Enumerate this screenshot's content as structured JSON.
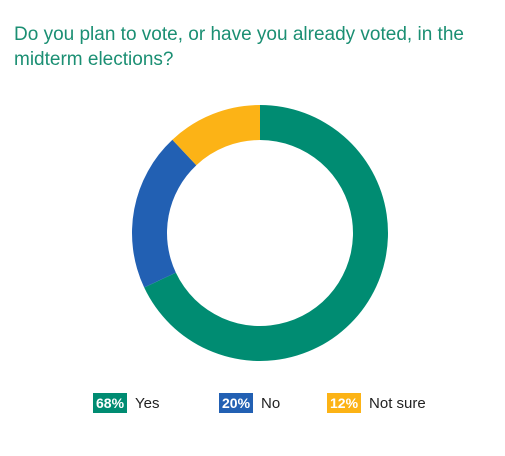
{
  "title": "Do you plan to vote, or have you already voted, in the midterm elections?",
  "colors": {
    "yes": "#008c72",
    "no": "#2260b3",
    "not_sure": "#fcb316",
    "title": "#1b8f73"
  },
  "chart_data": {
    "type": "pie",
    "variant": "donut",
    "title": "Do you plan to vote, or have you already voted, in the midterm elections?",
    "categories": [
      "Yes",
      "No",
      "Not sure"
    ],
    "values": [
      68,
      20,
      12
    ],
    "value_labels": [
      "68%",
      "20%",
      "12%"
    ],
    "unit": "%",
    "colors": [
      "#008c72",
      "#2260b3",
      "#fcb316"
    ],
    "start_angle": "12 o'clock",
    "direction": "clockwise",
    "legend": "bottom"
  },
  "legend": [
    {
      "pct": "68%",
      "label": "Yes",
      "color": "#008c72"
    },
    {
      "pct": "20%",
      "label": "No",
      "color": "#2260b3"
    },
    {
      "pct": "12%",
      "label": "Not sure",
      "color": "#fcb316"
    }
  ]
}
